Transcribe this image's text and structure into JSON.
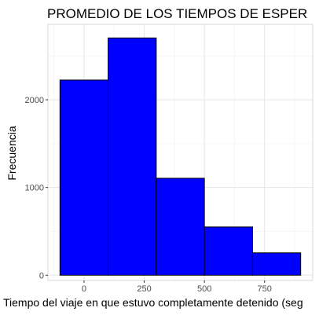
{
  "chart_data": {
    "type": "bar",
    "subtype": "histogram",
    "title": "PROMEDIO DE LOS TIEMPOS DE ESPER",
    "xlabel": "Tiempo del viaje en que estuvo completamente detenido (seg",
    "ylabel": "Frecuencia",
    "bins": [
      {
        "start": -100,
        "end": 100,
        "value": 2225
      },
      {
        "start": 100,
        "end": 300,
        "value": 2705
      },
      {
        "start": 300,
        "end": 500,
        "value": 1105
      },
      {
        "start": 500,
        "end": 700,
        "value": 550
      },
      {
        "start": 700,
        "end": 900,
        "value": 255
      }
    ],
    "xlim": [
      -150,
      950
    ],
    "ylim": [
      -60,
      2860
    ],
    "x_ticks": [
      0,
      250,
      500,
      750
    ],
    "x_tick_labels": [
      "0",
      "250",
      "500",
      "750"
    ],
    "y_ticks": [
      0,
      1000,
      2000
    ],
    "y_tick_labels": [
      "0",
      "1000",
      "2000"
    ],
    "bar_fill": "#0000ff",
    "bar_stroke": "#000000",
    "grid": true,
    "grid_color": "#e5e5e5",
    "panel_border_color": "#d9d9d9",
    "theme": "light"
  }
}
